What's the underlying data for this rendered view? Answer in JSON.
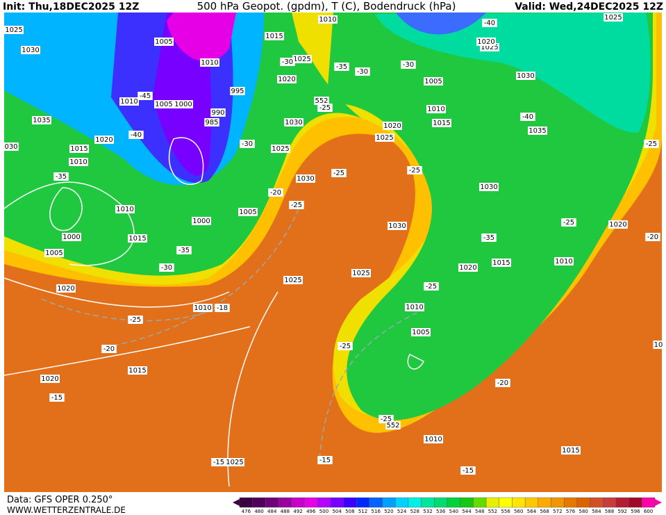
{
  "header": {
    "init": "Init: Thu,18DEC2025 12Z",
    "title": "500 hPa Geopot. (gpdm), T (C), Bodendruck (hPa)",
    "valid": "Valid: Wed,24DEC2025 12Z"
  },
  "footer": {
    "data": "Data: GFS OPER 0.250°",
    "site": "WWW.WETTERZENTRALE.DE"
  },
  "colorbar": {
    "labels": [
      476,
      480,
      484,
      488,
      492,
      496,
      500,
      504,
      508,
      512,
      516,
      520,
      524,
      528,
      532,
      536,
      540,
      544,
      548,
      552,
      556,
      560,
      564,
      568,
      572,
      576,
      580,
      584,
      588,
      592,
      596,
      600
    ],
    "colors": [
      "#3a0040",
      "#50005a",
      "#6e0078",
      "#9a00a0",
      "#c800c8",
      "#e600e6",
      "#b400ff",
      "#7800ff",
      "#3c00ff",
      "#0028ff",
      "#0064ff",
      "#00a0ff",
      "#00d2ff",
      "#00f0e6",
      "#00e6a0",
      "#00dc6e",
      "#00d23c",
      "#14c814",
      "#64dc00",
      "#e6f000",
      "#ffff00",
      "#ffe600",
      "#ffc800",
      "#ffaa00",
      "#f09600",
      "#e67800",
      "#dc6400",
      "#d25028",
      "#c83c3c",
      "#b41e32",
      "#a00a28",
      "#ff00aa"
    ]
  },
  "map": {
    "labels": [
      "1025",
      "1030",
      "1035",
      "030",
      "1015",
      "1010",
      "1020",
      "-35",
      "1010",
      "1000",
      "1005",
      "1015",
      "-35",
      "-30",
      "1020",
      "1010",
      "-18",
      "-25",
      "-20",
      "1015",
      "1020",
      "-15",
      "-15",
      "1025",
      "-15",
      "1025",
      "1000",
      "1005",
      "-20",
      "-25",
      "1030",
      "-25",
      "1025",
      "-30",
      "985",
      "990",
      "995",
      "1005",
      "1000",
      "1010",
      "-45",
      "-40",
      "1005",
      "1010",
      "1015",
      "1025",
      "-30",
      "1020",
      "1030",
      "-25",
      "552",
      "1010",
      "-35",
      "-30",
      "-30",
      "1005",
      "1010",
      "1015",
      "1020",
      "1025",
      "-25",
      "1030",
      "1025",
      "-25",
      "1010",
      "1005",
      "-25",
      "-25",
      "552",
      "1010",
      "-20",
      "-35",
      "1020",
      "1015",
      "1030",
      "1010",
      "-25",
      "1020",
      "-20",
      "-25",
      "1035",
      "-40",
      "1030",
      "1025",
      "1020",
      "-40",
      "1025",
      "-15",
      "1015",
      "10"
    ]
  }
}
